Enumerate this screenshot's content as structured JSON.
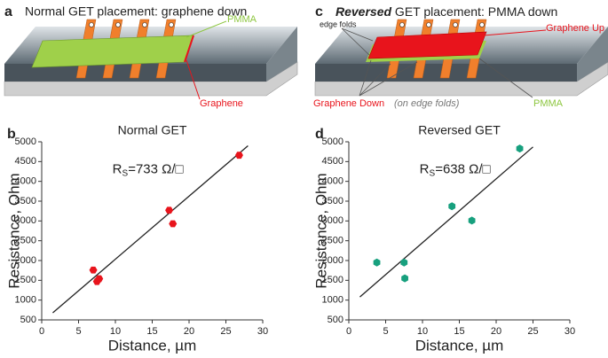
{
  "panels": {
    "a": {
      "label": "a",
      "title": "Normal GET placement: graphene down",
      "pmma": "PMMA",
      "graphene": "Graphene"
    },
    "c": {
      "label": "c",
      "title_emphasis": "Reversed",
      "title": " GET placement: PMMA down",
      "edge_folds": "edge folds",
      "graphene_up": "Graphene Up",
      "graphene_down": "Graphene Down",
      "on_edge_folds": "(on edge folds)",
      "pmma": "PMMA"
    }
  },
  "chart_data": [
    {
      "type": "scatter",
      "panel": "b",
      "title": "Normal GET",
      "xlabel": "Distance, µm",
      "ylabel": "Resistance, Ohm",
      "annotation": {
        "symbol": "R",
        "subscript": "S",
        "text": "=733 Ω/□"
      },
      "x": [
        7.0,
        7.5,
        7.8,
        17.3,
        17.8,
        26.8
      ],
      "values": [
        1760,
        1470,
        1540,
        3270,
        2930,
        4660
      ],
      "color": "#e8141c",
      "fit": {
        "x": [
          1.5,
          28
        ],
        "y": [
          680,
          4900
        ]
      },
      "xlim": [
        0,
        30
      ],
      "xticks": [
        0,
        5,
        10,
        15,
        20,
        25,
        30
      ],
      "ylim": [
        500,
        5000
      ],
      "yticks": [
        500,
        1000,
        1500,
        2000,
        2500,
        3000,
        3500,
        4000,
        4500,
        5000
      ]
    },
    {
      "type": "scatter",
      "panel": "d",
      "title": "Reversed GET",
      "xlabel": "Distance, µm",
      "ylabel": "Resistance, Ohm",
      "annotation": {
        "symbol": "R",
        "subscript": "S",
        "text": "=638 Ω/□"
      },
      "x": [
        3.8,
        7.5,
        7.6,
        14.0,
        16.7,
        23.2
      ],
      "values": [
        1950,
        1950,
        1550,
        3370,
        3010,
        4830
      ],
      "color": "#17a07e",
      "fit": {
        "x": [
          1.5,
          25
        ],
        "y": [
          1080,
          4870
        ]
      },
      "xlim": [
        0,
        30
      ],
      "xticks": [
        0,
        5,
        10,
        15,
        20,
        25,
        30
      ],
      "ylim": [
        500,
        5000
      ],
      "yticks": [
        500,
        1000,
        1500,
        2000,
        2500,
        3000,
        3500,
        4000,
        4500,
        5000
      ]
    }
  ]
}
